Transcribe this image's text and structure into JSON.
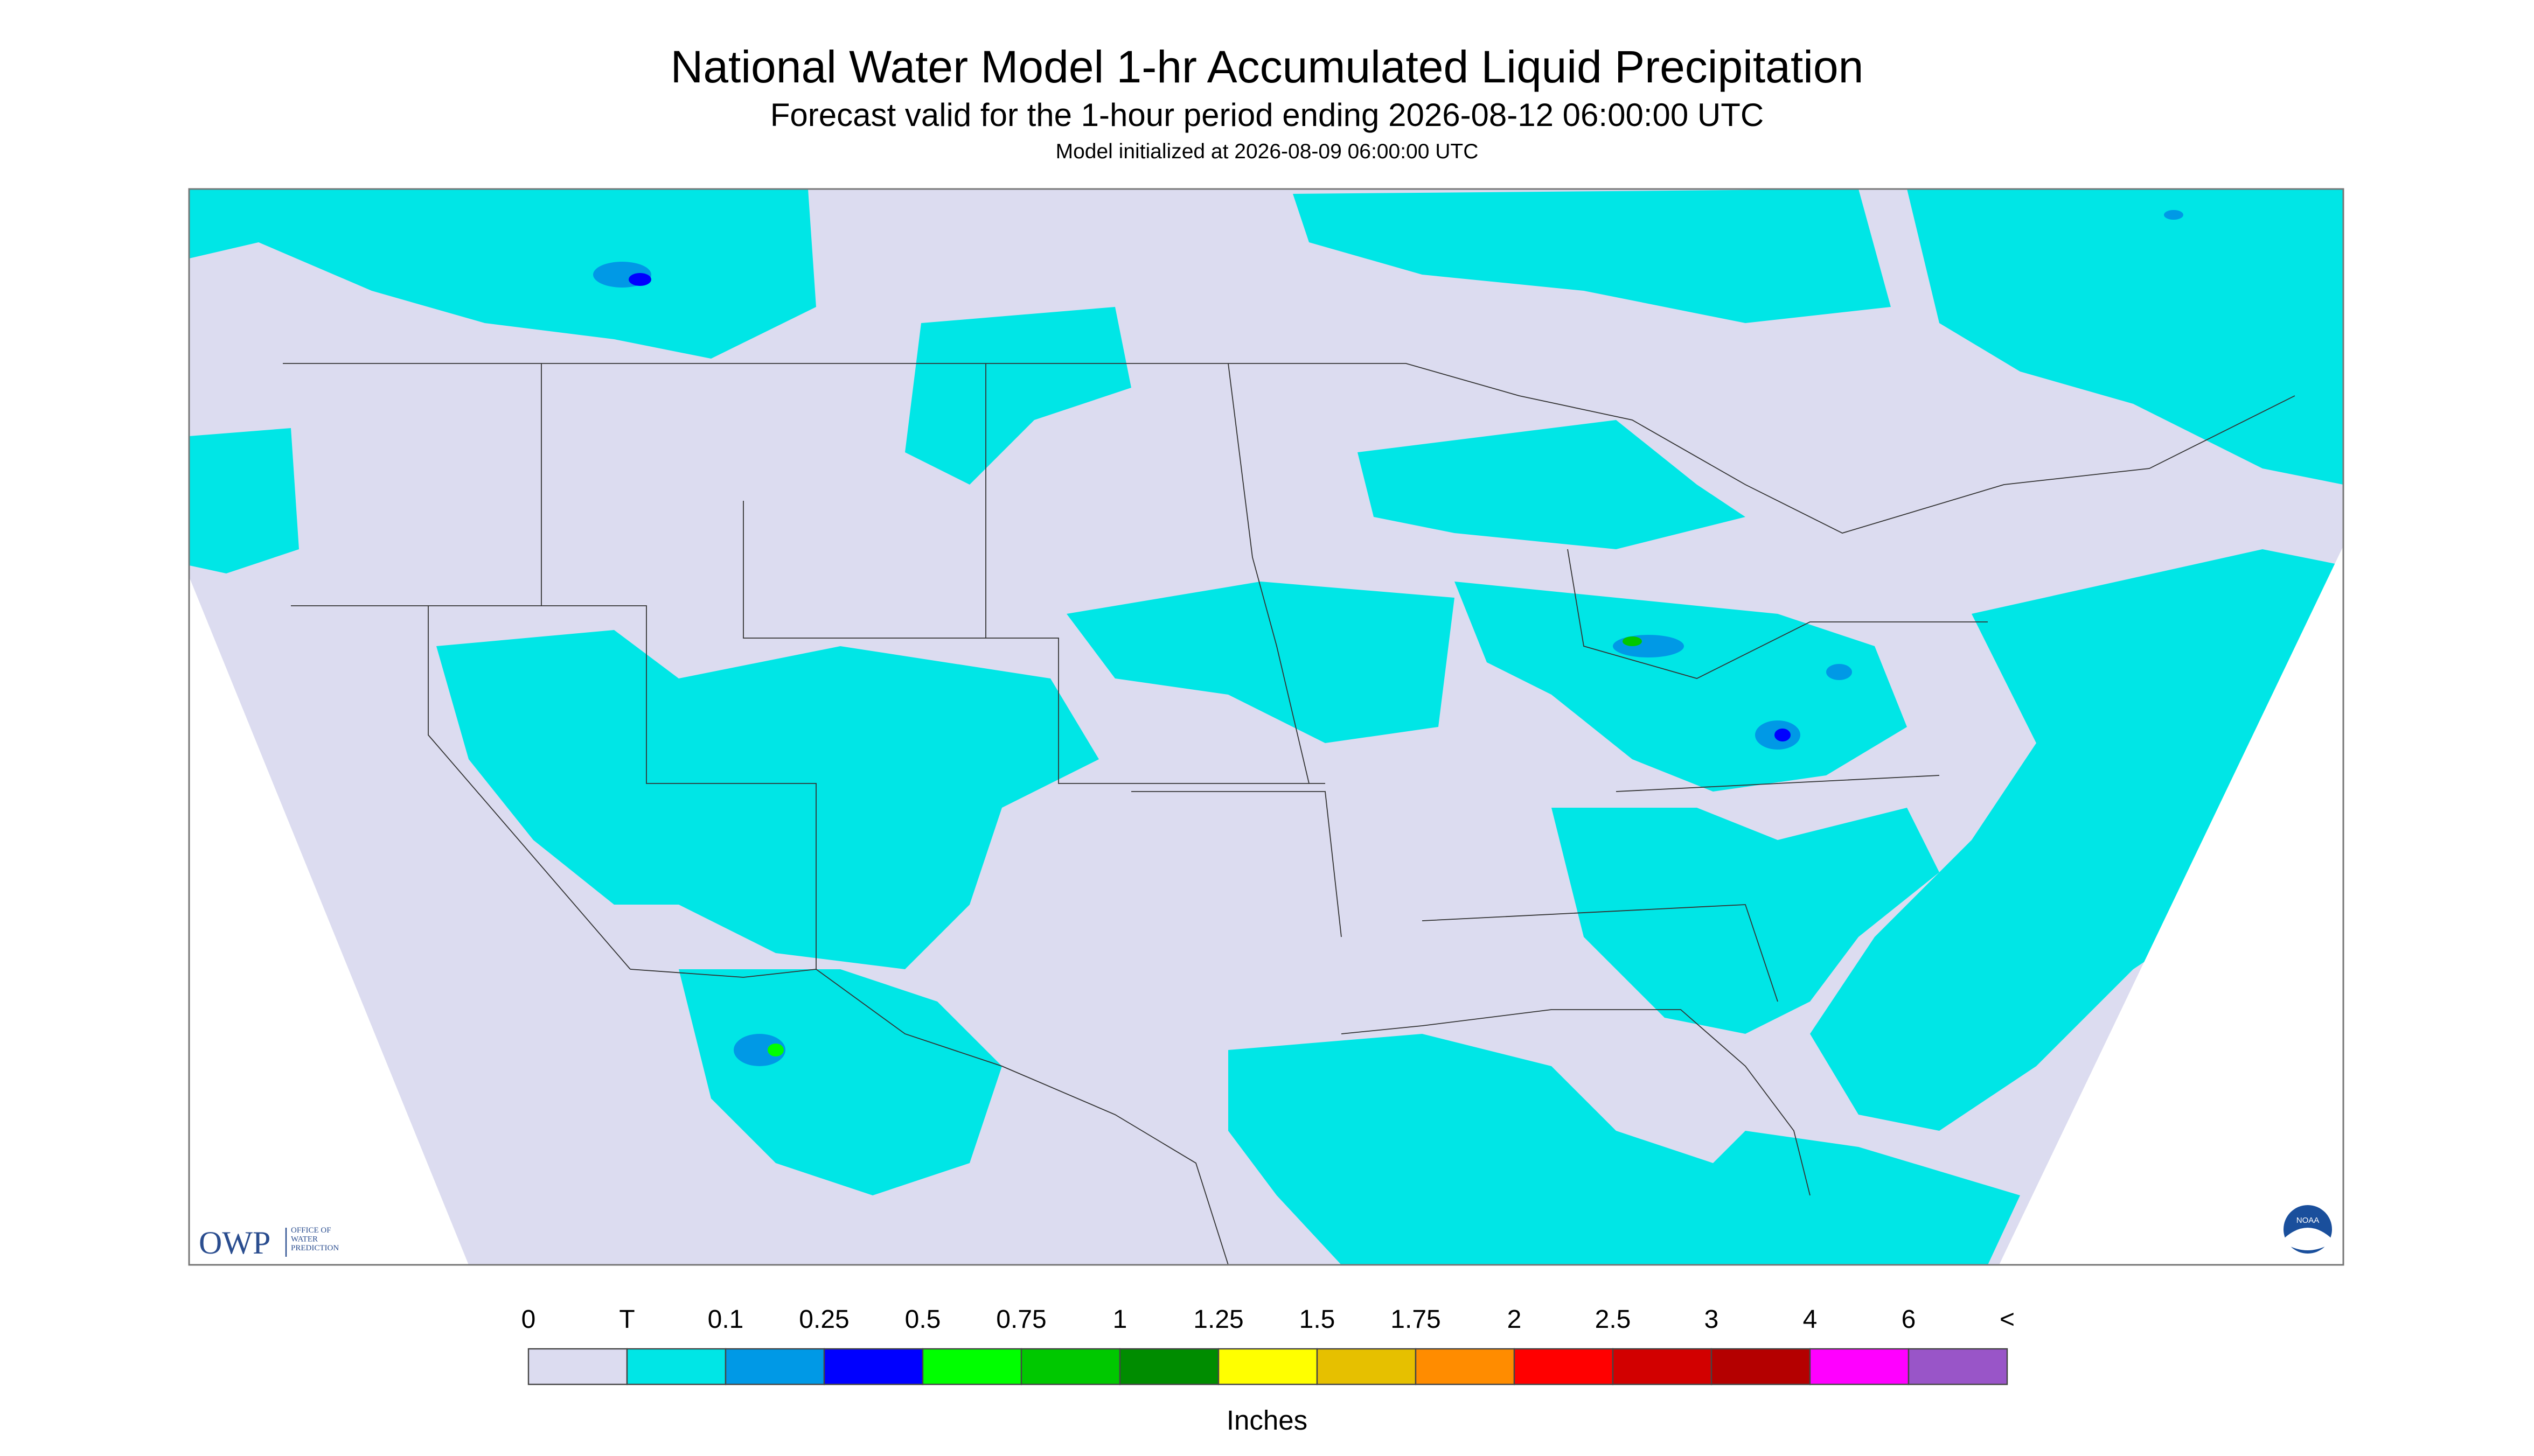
{
  "header": {
    "title": "National Water Model 1-hr Accumulated Liquid Precipitation",
    "subtitle": "Forecast valid for the 1-hour period ending 2026-08-12 06:00:00 UTC",
    "init": "Model initialized at 2026-08-09 06:00:00 UTC"
  },
  "logos": {
    "owp": "OWP",
    "owp_name": [
      "OFFICE OF",
      "WATER",
      "PREDICTION"
    ],
    "noaa": "NOAA"
  },
  "legend": {
    "labels": [
      "0",
      "T",
      "0.1",
      "0.25",
      "0.5",
      "0.75",
      "1",
      "1.25",
      "1.5",
      "1.75",
      "2",
      "2.5",
      "3",
      "4",
      "6",
      "<"
    ],
    "colors": [
      "#dcdcf0",
      "#00e6e6",
      "#0099e6",
      "#0000ff",
      "#00ff00",
      "#00c800",
      "#008c00",
      "#ffff00",
      "#e6c000",
      "#ff8c00",
      "#ff0000",
      "#d20000",
      "#b40000",
      "#ff00ff",
      "#9955c8"
    ],
    "unit": "Inches"
  }
}
